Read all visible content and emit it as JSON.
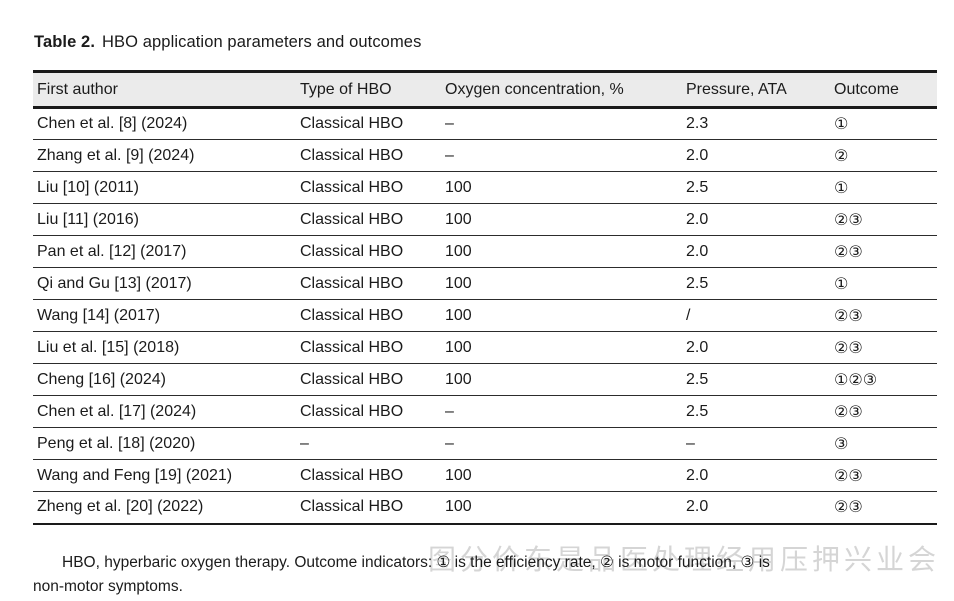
{
  "title": {
    "label": "Table 2.",
    "text": "HBO application parameters and outcomes"
  },
  "table": {
    "columns": [
      "First author",
      "Type of HBO",
      "Oxygen concentration, %",
      "Pressure, ATA",
      "Outcome"
    ],
    "rows": [
      [
        "Chen et al. [8] (2024)",
        "Classical HBO",
        "–",
        "2.3",
        "①"
      ],
      [
        "Zhang et al. [9] (2024)",
        "Classical HBO",
        "–",
        "2.0",
        "②"
      ],
      [
        "Liu [10] (2011)",
        "Classical HBO",
        "100",
        "2.5",
        "①"
      ],
      [
        "Liu [11] (2016)",
        "Classical HBO",
        "100",
        "2.0",
        "②③"
      ],
      [
        "Pan et al. [12] (2017)",
        "Classical HBO",
        "100",
        "2.0",
        "②③"
      ],
      [
        "Qi and Gu [13] (2017)",
        "Classical HBO",
        "100",
        "2.5",
        "①"
      ],
      [
        "Wang [14] (2017)",
        "Classical HBO",
        "100",
        "/",
        "②③"
      ],
      [
        "Liu et al. [15] (2018)",
        "Classical HBO",
        "100",
        "2.0",
        "②③"
      ],
      [
        "Cheng [16] (2024)",
        "Classical HBO",
        "100",
        "2.5",
        "①②③"
      ],
      [
        "Chen et al. [17] (2024)",
        "Classical HBO",
        "–",
        "2.5",
        "②③"
      ],
      [
        "Peng et al. [18] (2020)",
        "–",
        "–",
        "–",
        "③"
      ],
      [
        "Wang and Feng [19] (2021)",
        "Classical HBO",
        "100",
        "2.0",
        "②③"
      ],
      [
        "Zheng et al. [20] (2022)",
        "Classical HBO",
        "100",
        "2.0",
        "②③"
      ]
    ]
  },
  "footnote": {
    "line1": "HBO, hyperbaric oxygen therapy. Outcome indicators: ① is the efficiency rate, ② is motor function, ③ is",
    "line2": "non-motor symptoms."
  },
  "watermark": {
    "text": "图分价东是品医处理经用压押兴业会"
  },
  "colors": {
    "header_bg": "#ebebeb",
    "border": "#1a1a1a",
    "text": "#1b1b1b",
    "watermark": "#b3b3b3"
  }
}
